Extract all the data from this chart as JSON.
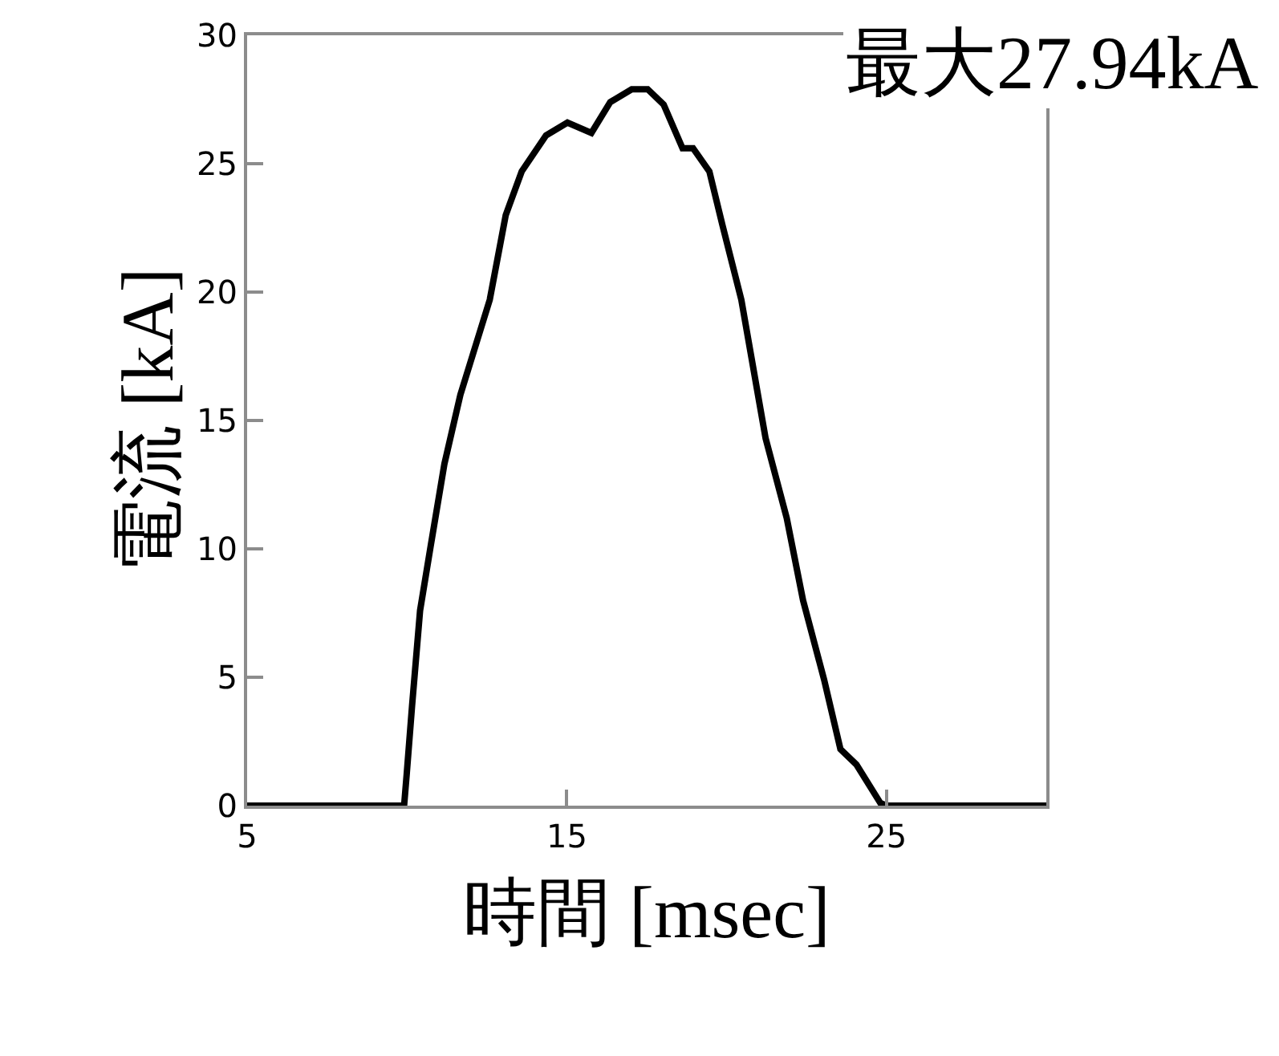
{
  "chart_data": {
    "type": "line",
    "xlabel": "時間 [msec]",
    "ylabel": "電流 [kA]",
    "annotations": [
      "最大27.94kA"
    ],
    "xlim": [
      5,
      30
    ],
    "xticks": [
      5,
      15,
      25
    ],
    "ylim": [
      0,
      30
    ],
    "yticks": [
      0,
      5,
      10,
      15,
      20,
      25,
      30
    ],
    "grid": false,
    "marker": "none",
    "line_style": "solid",
    "series": [
      {
        "color": "#000000",
        "x": [
          5,
          9.91,
          9.99,
          10.16,
          10.41,
          10.74,
          11.17,
          11.67,
          12.59,
          13.09,
          13.59,
          14.35,
          15.02,
          15.77,
          16.36,
          17.03,
          17.53,
          18.03,
          18.62,
          18.95,
          19.46,
          19.87,
          20.46,
          21.05,
          21.22,
          21.88,
          22.39,
          23.05,
          23.56,
          24.06,
          24.81,
          25,
          30
        ],
        "values": [
          0,
          0,
          1.2,
          3.9,
          7.6,
          10.1,
          13.3,
          16.0,
          19.7,
          23.0,
          24.7,
          26.1,
          26.6,
          26.2,
          27.4,
          27.9,
          27.9,
          27.3,
          25.6,
          25.6,
          24.7,
          22.6,
          19.7,
          15.5,
          14.3,
          11.2,
          8.0,
          4.9,
          2.2,
          1.6,
          0.1,
          0,
          0
        ]
      }
    ]
  }
}
